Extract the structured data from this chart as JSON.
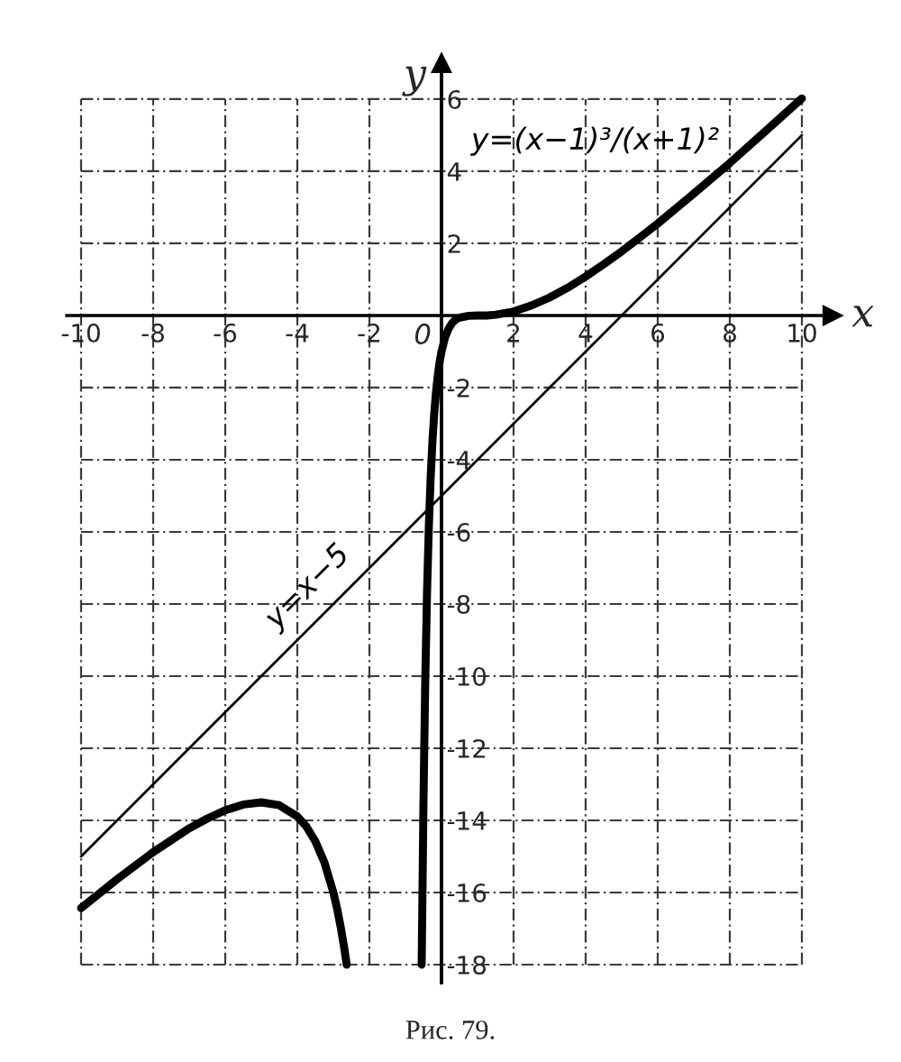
{
  "chart_data": {
    "type": "line",
    "xlabel": "x",
    "ylabel": "y",
    "annotations": [
      {
        "text": "0",
        "x": 0,
        "y": 0
      },
      "Рис. 79."
    ],
    "xlim": [
      -10.4,
      10.85
    ],
    "ylim": [
      -18.5,
      7
    ],
    "xticks": [
      -10,
      -8,
      -6,
      -4,
      -2,
      2,
      4,
      6,
      8,
      10
    ],
    "yticks": [
      -18,
      -16,
      -14,
      -12,
      -10,
      -8,
      -6,
      -4,
      -2,
      2,
      4,
      6
    ],
    "grid": true,
    "series": [
      {
        "name": "y=(x−1)³/(x+1)²",
        "color": "#000000",
        "x": [
          -10,
          -9,
          -8,
          -7,
          -6.5,
          -6,
          -5.5,
          -5,
          -4.5,
          -4,
          -3.75,
          -3.5,
          -3.25,
          -3,
          -2.9,
          -2.8,
          -2.7,
          -2.63,
          -1,
          -0.55,
          -0.5,
          -0.45,
          -0.4,
          -0.35,
          -0.3,
          -0.25,
          -0.2,
          -0.15,
          -0.1,
          -0.05,
          0,
          0.1,
          0.2,
          0.3,
          0.4,
          0.5,
          0.75,
          1,
          1.25,
          1.5,
          2,
          2.5,
          3,
          3.5,
          4,
          4.5,
          5,
          5.5,
          6,
          7,
          8,
          9,
          10
        ],
        "values": [
          -16.43,
          -15.63,
          -14.88,
          -14.22,
          -13.95,
          -13.72,
          -13.56,
          -13.5,
          -13.58,
          -13.89,
          -14.17,
          -14.58,
          -15.16,
          -16.0,
          -16.43,
          -16.94,
          -17.53,
          -18.0,
          null,
          -18.0,
          -13.5,
          -10.08,
          -7.62,
          -5.82,
          -4.48,
          -3.47,
          -2.7,
          -2.1,
          -1.64,
          -1.28,
          -1.0,
          -0.6,
          -0.36,
          -0.2,
          -0.11,
          -0.06,
          -0.01,
          0.0,
          0.0,
          0.02,
          0.11,
          0.28,
          0.5,
          0.77,
          1.08,
          1.42,
          1.78,
          2.16,
          2.55,
          3.38,
          4.23,
          5.12,
          6.02
        ]
      },
      {
        "name": "y=x−5",
        "color": "#000000",
        "x": [
          -10,
          10
        ],
        "values": [
          -15,
          5
        ]
      }
    ]
  }
}
